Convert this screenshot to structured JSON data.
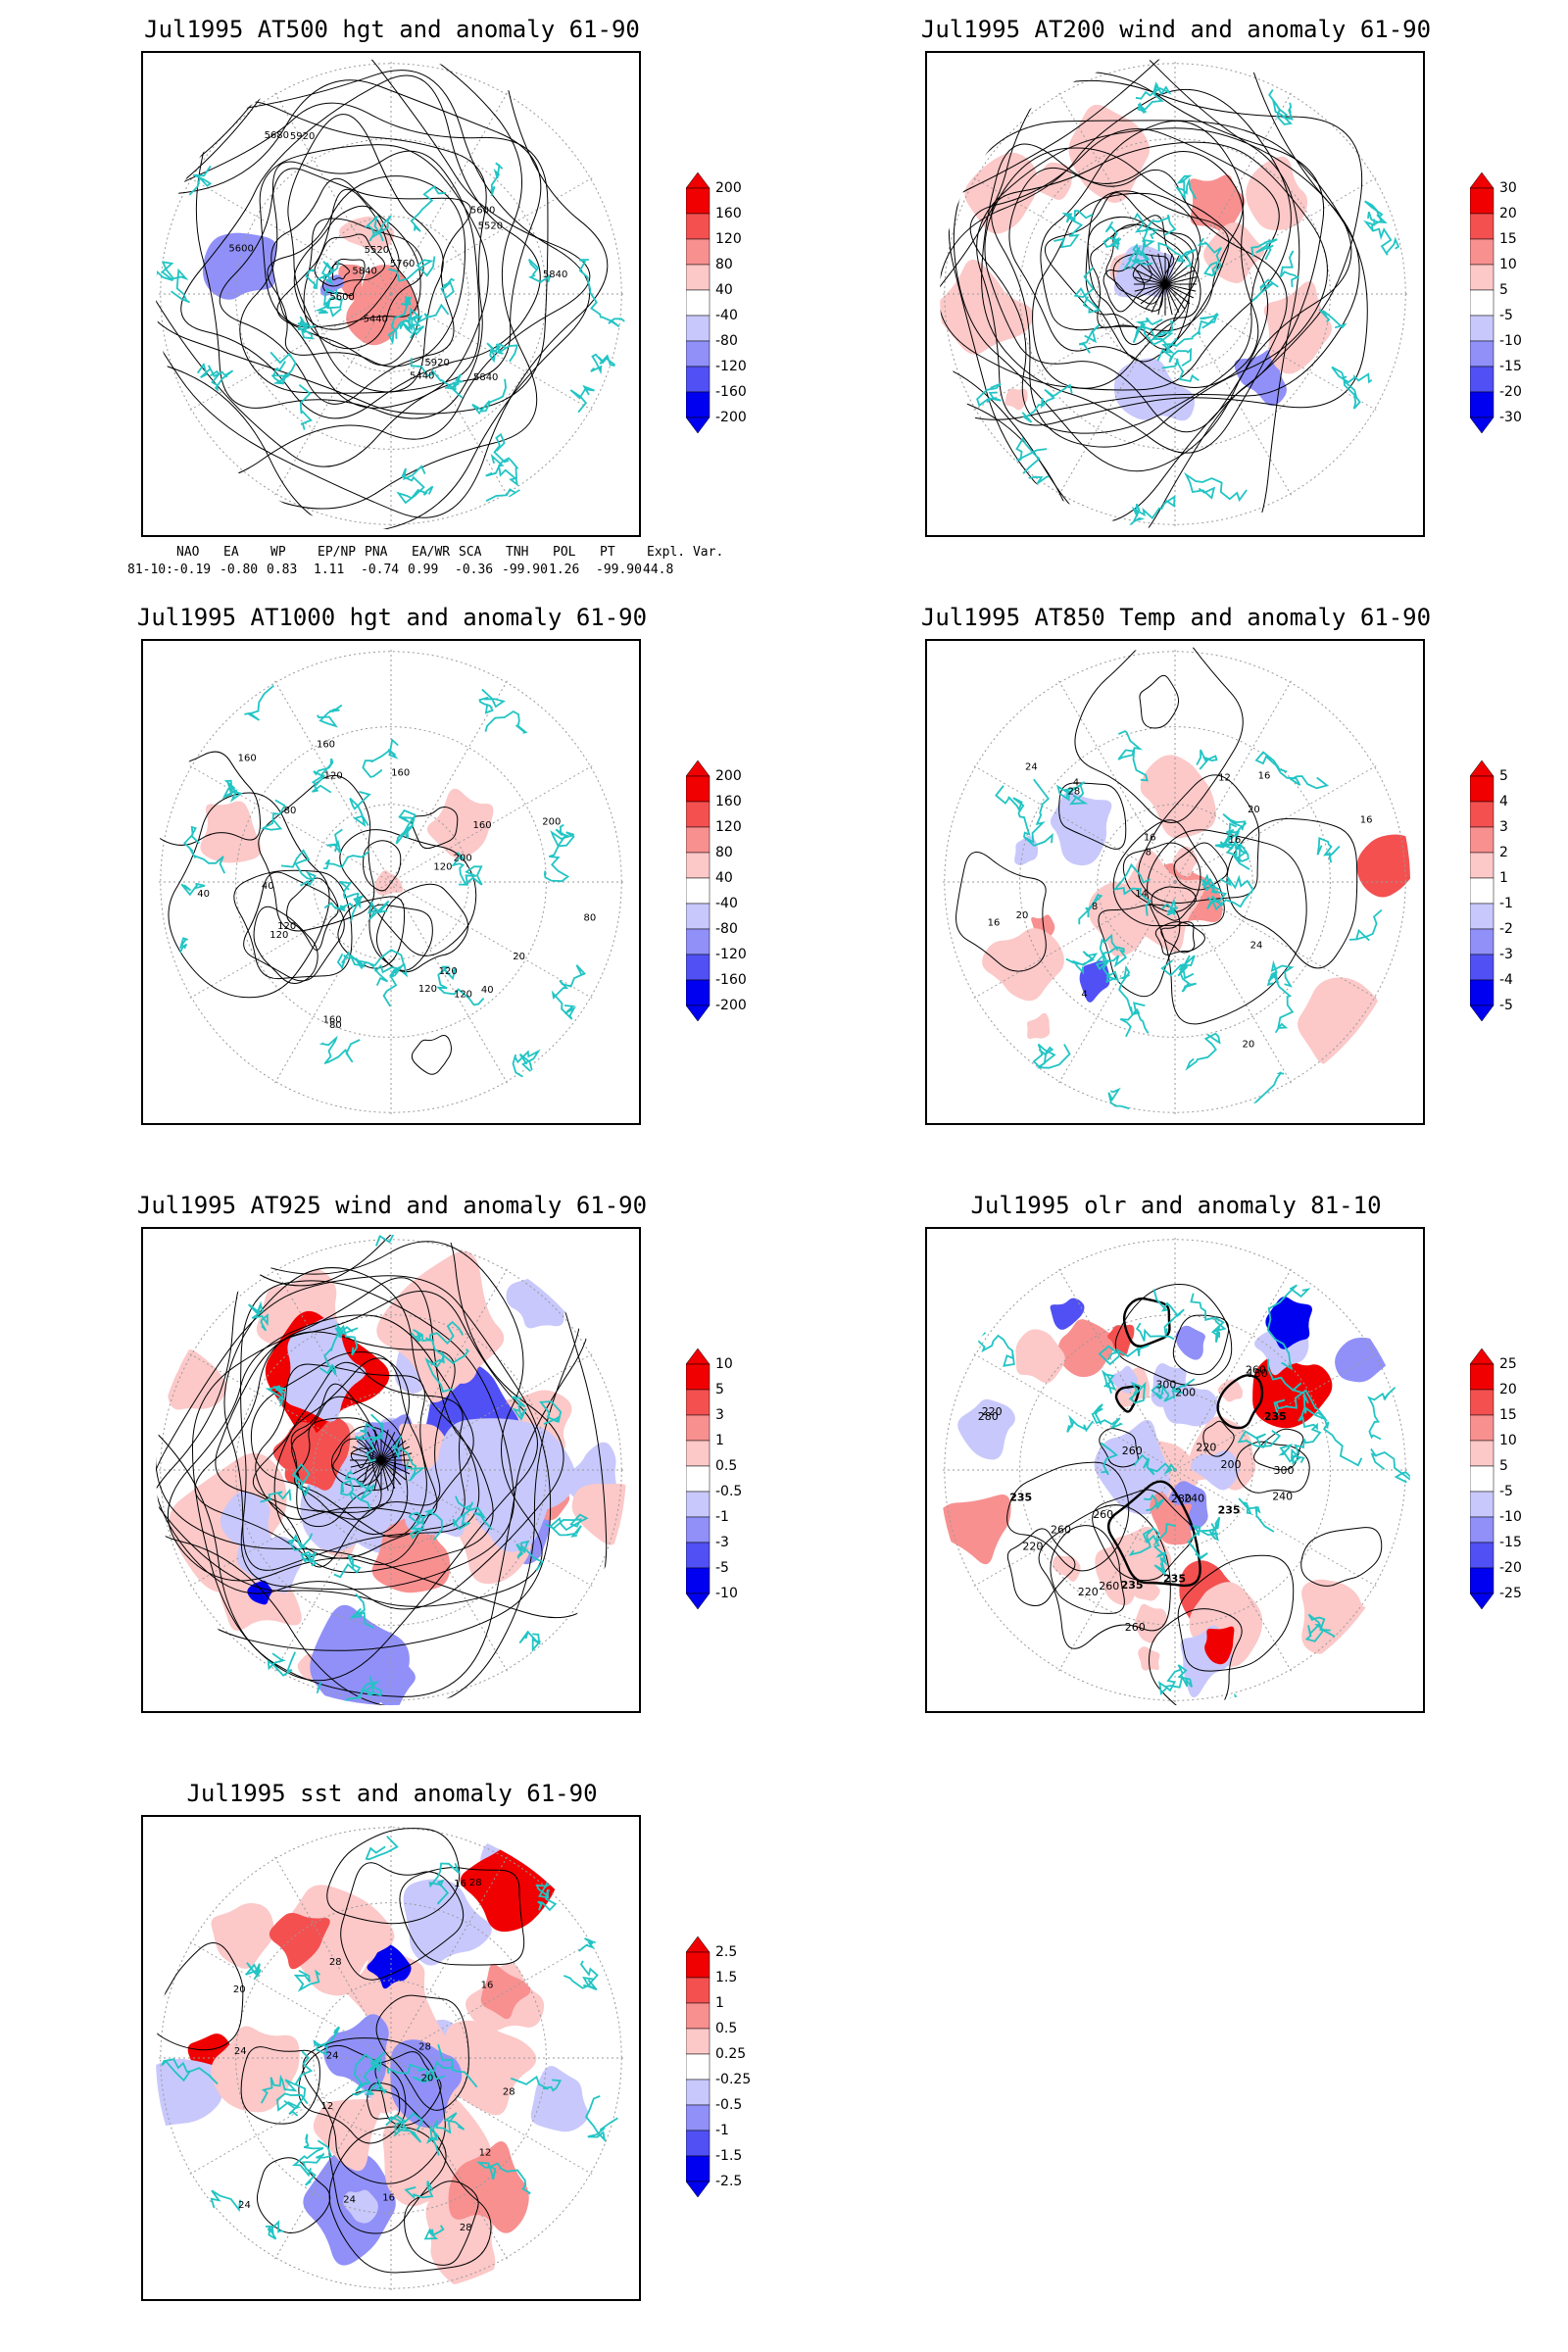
{
  "panels": [
    {
      "id": "at500",
      "title": "Jul1995 AT500 hgt and anomaly 61-90",
      "colorbar": [
        "200",
        "160",
        "120",
        "80",
        "40",
        "-40",
        "-80",
        "-120",
        "-160",
        "-200"
      ],
      "contour_labels": [
        "5840",
        "5600",
        "5600",
        "5520",
        "5440",
        "5520",
        "5440",
        "5600",
        "5680",
        "5760",
        "5840",
        "5840",
        "5920",
        "5920"
      ],
      "style": "height"
    },
    {
      "id": "at200",
      "title": "Jul1995 AT200 wind and anomaly 61-90",
      "colorbar": [
        "30",
        "20",
        "15",
        "10",
        "5",
        "-5",
        "-10",
        "-15",
        "-20",
        "-30"
      ],
      "contour_labels": [],
      "style": "wind"
    },
    {
      "id": "at1000",
      "title": "Jul1995 AT1000 hgt and anomaly 61-90",
      "colorbar": [
        "200",
        "160",
        "120",
        "80",
        "40",
        "-40",
        "-80",
        "-120",
        "-160",
        "-200"
      ],
      "contour_labels": [
        "120",
        "160",
        "160",
        "200",
        "160",
        "120",
        "80",
        "40",
        "120",
        "40",
        "80",
        "120",
        "160",
        "200",
        "160",
        "120",
        "80",
        "40",
        "20",
        "120",
        "120"
      ],
      "style": "height-light"
    },
    {
      "id": "at850",
      "title": "Jul1995 AT850 Temp and anomaly 61-90",
      "colorbar": [
        "5",
        "4",
        "3",
        "2",
        "1",
        "-1",
        "-2",
        "-3",
        "-4",
        "-5"
      ],
      "contour_labels": [
        "16",
        "12",
        "16",
        "8",
        "4",
        "4",
        "8",
        "14",
        "20",
        "16",
        "20",
        "28",
        "24",
        "16",
        "16",
        "20",
        "24"
      ],
      "style": "temp"
    },
    {
      "id": "at925",
      "title": "Jul1995 AT925 wind and anomaly 61-90",
      "colorbar": [
        "10",
        "5",
        "3",
        "1",
        "0.5",
        "-0.5",
        "-1",
        "-3",
        "-5",
        "-10"
      ],
      "contour_labels": [],
      "style": "wind-strong"
    },
    {
      "id": "olr",
      "title": "Jul1995 olr and anomaly 81-10",
      "colorbar": [
        "25",
        "20",
        "15",
        "10",
        "5",
        "-5",
        "-10",
        "-15",
        "-20",
        "-25"
      ],
      "contour_labels": [
        "260",
        "235",
        "220",
        "260",
        "240",
        "235",
        "220",
        "300",
        "280",
        "260",
        "235",
        "220",
        "200",
        "180",
        "235",
        "260",
        "240",
        "220",
        "300",
        "280",
        "260",
        "235",
        "200",
        "260"
      ],
      "style": "olr"
    },
    {
      "id": "sst",
      "title": "Jul1995 sst and anomaly 61-90",
      "colorbar": [
        "2.5",
        "1.5",
        "1",
        "0.5",
        "0.25",
        "-0.25",
        "-0.5",
        "-1",
        "-1.5",
        "-2.5"
      ],
      "contour_labels": [
        "28",
        "28",
        "24",
        "20",
        "16",
        "12",
        "16",
        "24",
        "28",
        "12",
        "16",
        "20",
        "24",
        "28",
        "24",
        "28"
      ],
      "style": "sst"
    }
  ],
  "index_table": {
    "headers": [
      "NAO",
      "EA",
      "WP",
      "EP/NP",
      "PNA",
      "EA/WR",
      "SCA",
      "TNH",
      "POL",
      "PT",
      "Expl. Var."
    ],
    "row_label": "81-10:",
    "values": [
      "-0.19",
      "-0.80",
      "0.83",
      "1.11",
      "-0.74",
      "0.99",
      "-0.36",
      "-99.90",
      "1.26",
      "-99.90",
      "44.8"
    ]
  },
  "colors": {
    "coast": "#22c4c4",
    "contour": "#000000",
    "positive": [
      "#f00000",
      "#f45050",
      "#f89090",
      "#fcc8c8"
    ],
    "negative": [
      "#c8c8fc",
      "#9090f8",
      "#5050f4",
      "#0000f0"
    ]
  }
}
